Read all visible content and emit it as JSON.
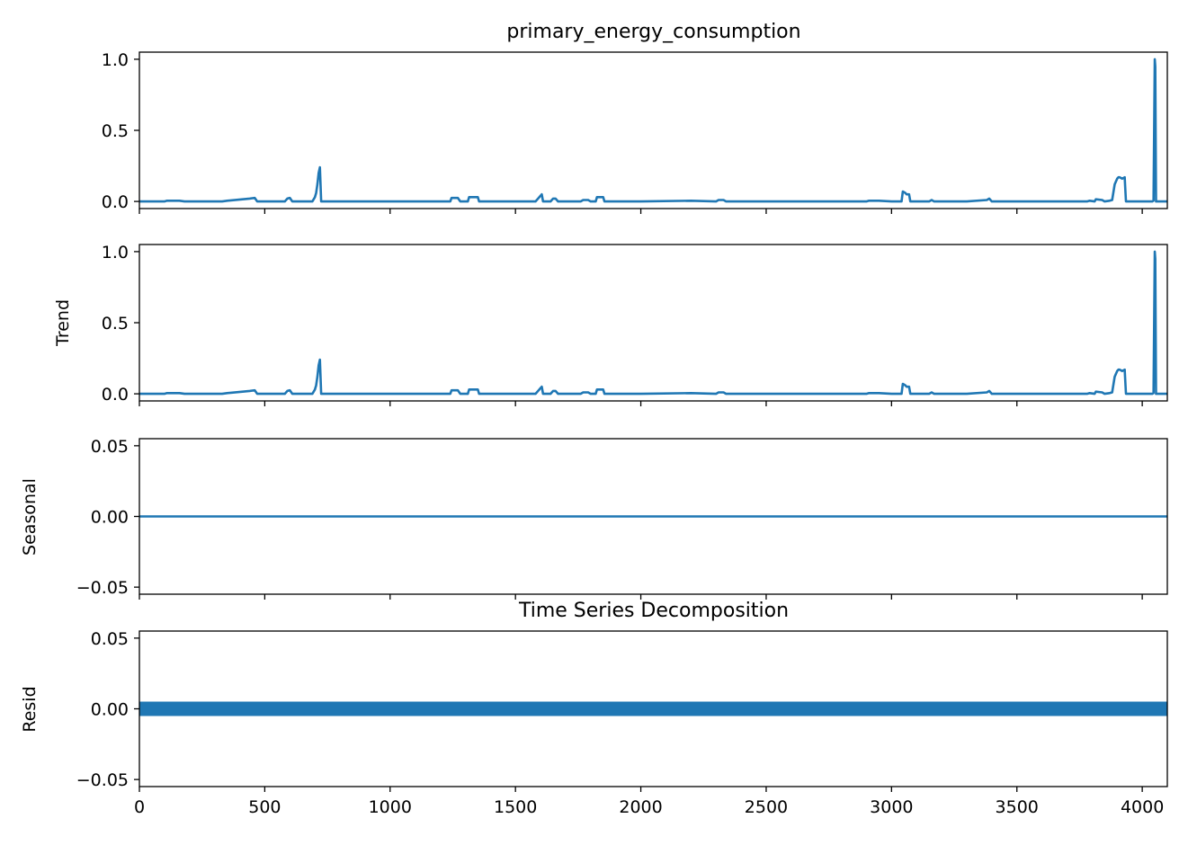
{
  "figure": {
    "title": "primary_energy_consumption",
    "subtitle": "Time Series Decomposition"
  },
  "chart_data": [
    {
      "type": "line",
      "title": "primary_energy_consumption",
      "ylabel": "",
      "xlim": [
        0,
        4100
      ],
      "ylim": [
        -0.05,
        1.05
      ],
      "xticks": [
        "0",
        "500",
        "1000",
        "1500",
        "2000",
        "2500",
        "3000",
        "3500",
        "4000"
      ],
      "yticks": [
        "0.0",
        "0.5",
        "1.0"
      ],
      "ytick_values": [
        0,
        0.5,
        1.0
      ],
      "show_xtick_labels": false,
      "grid": false,
      "line_color": "#1f77b4",
      "series": [
        {
          "x": [
            0,
            100,
            110,
            160,
            180,
            330,
            350,
            440,
            460,
            470,
            580,
            590,
            600,
            610,
            690,
            700,
            705,
            710,
            715,
            720,
            725,
            740,
            1050,
            1240,
            1245,
            1270,
            1280,
            1310,
            1315,
            1350,
            1355,
            1580,
            1590,
            1600,
            1605,
            1610,
            1640,
            1645,
            1650,
            1660,
            1670,
            1680,
            1760,
            1770,
            1790,
            1800,
            1820,
            1825,
            1850,
            1855,
            2000,
            2200,
            2300,
            2310,
            2330,
            2340,
            2500,
            2800,
            2900,
            2910,
            2950,
            3000,
            3040,
            3045,
            3055,
            3060,
            3070,
            3075,
            3150,
            3160,
            3170,
            3300,
            3380,
            3390,
            3400,
            3500,
            3780,
            3790,
            3810,
            3815,
            3840,
            3850,
            3870,
            3880,
            3890,
            3895,
            3900,
            3905,
            3910,
            3920,
            3930,
            3935,
            4000,
            4040,
            4045,
            4050,
            4052,
            4055,
            4060,
            4100
          ],
          "y": [
            0,
            0,
            0.005,
            0.005,
            0,
            0,
            0.005,
            0.02,
            0.025,
            0,
            0,
            0.02,
            0.025,
            0,
            0,
            0.03,
            0.06,
            0.12,
            0.2,
            0.24,
            0,
            0,
            0,
            0,
            0.025,
            0.025,
            0,
            0,
            0.03,
            0.03,
            0,
            0,
            0.02,
            0.04,
            0.05,
            0,
            0,
            0.01,
            0.02,
            0.02,
            0,
            0,
            0,
            0.01,
            0.01,
            0,
            0,
            0.03,
            0.03,
            0,
            0,
            0.005,
            0,
            0.01,
            0.01,
            0,
            0,
            0,
            0,
            0.005,
            0.005,
            0,
            0,
            0.07,
            0.06,
            0.05,
            0.05,
            0,
            0,
            0.01,
            0,
            0,
            0.01,
            0.02,
            0,
            0,
            0,
            0.005,
            0,
            0.015,
            0.01,
            0,
            0.005,
            0.01,
            0.12,
            0.14,
            0.16,
            0.17,
            0.17,
            0.16,
            0.17,
            0,
            0,
            0,
            0.005,
            1.0,
            0.95,
            0,
            0,
            0
          ]
        }
      ]
    },
    {
      "type": "line",
      "title": "",
      "ylabel": "Trend",
      "xlim": [
        0,
        4100
      ],
      "ylim": [
        -0.05,
        1.05
      ],
      "xticks": [
        "0",
        "500",
        "1000",
        "1500",
        "2000",
        "2500",
        "3000",
        "3500",
        "4000"
      ],
      "yticks": [
        "0.0",
        "0.5",
        "1.0"
      ],
      "ytick_values": [
        0,
        0.5,
        1.0
      ],
      "show_xtick_labels": false,
      "grid": false,
      "line_color": "#1f77b4",
      "series": [
        {
          "x": [
            0,
            100,
            110,
            160,
            180,
            330,
            350,
            440,
            460,
            470,
            580,
            590,
            600,
            610,
            690,
            700,
            705,
            710,
            715,
            720,
            725,
            740,
            1050,
            1240,
            1245,
            1270,
            1280,
            1310,
            1315,
            1350,
            1355,
            1580,
            1590,
            1600,
            1605,
            1610,
            1640,
            1645,
            1650,
            1660,
            1670,
            1680,
            1760,
            1770,
            1790,
            1800,
            1820,
            1825,
            1850,
            1855,
            2000,
            2200,
            2300,
            2310,
            2330,
            2340,
            2500,
            2800,
            2900,
            2910,
            2950,
            3000,
            3040,
            3045,
            3055,
            3060,
            3070,
            3075,
            3150,
            3160,
            3170,
            3300,
            3380,
            3390,
            3400,
            3500,
            3780,
            3790,
            3810,
            3815,
            3840,
            3850,
            3870,
            3880,
            3890,
            3895,
            3900,
            3905,
            3910,
            3920,
            3930,
            3935,
            4000,
            4040,
            4045,
            4050,
            4052,
            4055,
            4060,
            4100
          ],
          "y": [
            0,
            0,
            0.005,
            0.005,
            0,
            0,
            0.005,
            0.02,
            0.025,
            0,
            0,
            0.02,
            0.025,
            0,
            0,
            0.03,
            0.06,
            0.12,
            0.2,
            0.24,
            0,
            0,
            0,
            0,
            0.025,
            0.025,
            0,
            0,
            0.03,
            0.03,
            0,
            0,
            0.02,
            0.04,
            0.05,
            0,
            0,
            0.01,
            0.02,
            0.02,
            0,
            0,
            0,
            0.01,
            0.01,
            0,
            0,
            0.03,
            0.03,
            0,
            0,
            0.005,
            0,
            0.01,
            0.01,
            0,
            0,
            0,
            0,
            0.005,
            0.005,
            0,
            0,
            0.07,
            0.06,
            0.05,
            0.05,
            0,
            0,
            0.01,
            0,
            0,
            0.01,
            0.02,
            0,
            0,
            0,
            0.005,
            0,
            0.015,
            0.01,
            0,
            0.005,
            0.01,
            0.12,
            0.14,
            0.16,
            0.17,
            0.17,
            0.16,
            0.17,
            0,
            0,
            0,
            0.005,
            1.0,
            0.95,
            0,
            0,
            0
          ]
        }
      ]
    },
    {
      "type": "line",
      "title": "",
      "ylabel": "Seasonal",
      "xlim": [
        0,
        4100
      ],
      "ylim": [
        -0.055,
        0.055
      ],
      "xticks": [
        "0",
        "500",
        "1000",
        "1500",
        "2000",
        "2500",
        "3000",
        "3500",
        "4000"
      ],
      "yticks": [
        "0.05",
        "0.00",
        "−0.05"
      ],
      "ytick_values": [
        0.05,
        0,
        -0.05
      ],
      "show_xtick_labels": false,
      "grid": false,
      "line_color": "#1f77b4",
      "series": [
        {
          "x": [
            0,
            4100
          ],
          "y": [
            0,
            0
          ]
        }
      ]
    },
    {
      "type": "scatter",
      "title": "Time Series Decomposition",
      "ylabel": "Resid",
      "xlim": [
        0,
        4100
      ],
      "ylim": [
        -0.055,
        0.055
      ],
      "xticks": [
        "0",
        "500",
        "1000",
        "1500",
        "2000",
        "2500",
        "3000",
        "3500",
        "4000"
      ],
      "yticks": [
        "0.05",
        "0.00",
        "−0.05"
      ],
      "ytick_values": [
        0.05,
        0,
        -0.05
      ],
      "show_xtick_labels": true,
      "grid": false,
      "marker_color": "#1f77b4",
      "series": [
        {
          "x_range": [
            0,
            4100
          ],
          "y": 0
        }
      ]
    }
  ]
}
